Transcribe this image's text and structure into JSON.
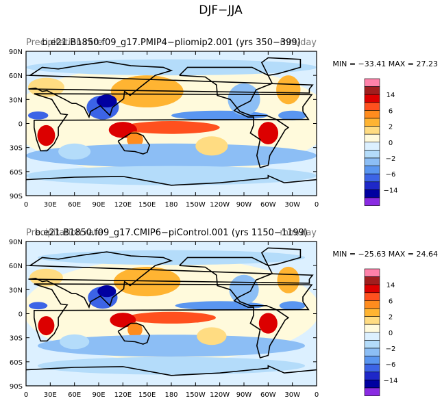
{
  "figure_title": "DJF−JJA",
  "colors": {
    "levels": [
      "#8a2be2",
      "#0000a0",
      "#1e28c8",
      "#3c64e6",
      "#5a96f0",
      "#8cbef5",
      "#b4dcfa",
      "#dcf0ff",
      "#fffadc",
      "#ffdc82",
      "#ffb432",
      "#ff8c1e",
      "#ff501e",
      "#dc0000",
      "#a01e1e",
      "#ff82aa"
    ]
  },
  "chart_data": [
    {
      "type": "heatmap",
      "title": "b.e21.B1850.f09_g17.PMIP4−pliomip2.001 (yrs 350−399)",
      "left_title": "Precipitation rate",
      "right_title": "mm/day",
      "stats": "MIN = −33.41  MAX =  27.23",
      "x_ticks": [
        "0",
        "30E",
        "60E",
        "90E",
        "120E",
        "150E",
        "180",
        "150W",
        "120W",
        "90W",
        "60W",
        "30W",
        "0"
      ],
      "y_ticks": [
        "90N",
        "60N",
        "30N",
        "0",
        "30S",
        "60S",
        "90S"
      ],
      "colorbar_labels": [
        "14",
        "6",
        "2",
        "0",
        "−2",
        "−6",
        "−14"
      ]
    },
    {
      "type": "heatmap",
      "title": "b.e21.B1850.f09_g17.CMIP6−piControl.001 (yrs 1150−1199)",
      "left_title": "Precipitation rate",
      "right_title": "mm/day",
      "stats": "MIN = −25.63  MAX =  24.64",
      "x_ticks": [
        "0",
        "30E",
        "60E",
        "90E",
        "120E",
        "150E",
        "180",
        "150W",
        "120W",
        "90W",
        "60W",
        "30W",
        "0"
      ],
      "y_ticks": [
        "90N",
        "60N",
        "30N",
        "0",
        "30S",
        "60S",
        "90S"
      ],
      "colorbar_labels": [
        "14",
        "6",
        "2",
        "0",
        "−2",
        "−6",
        "−14"
      ]
    }
  ]
}
